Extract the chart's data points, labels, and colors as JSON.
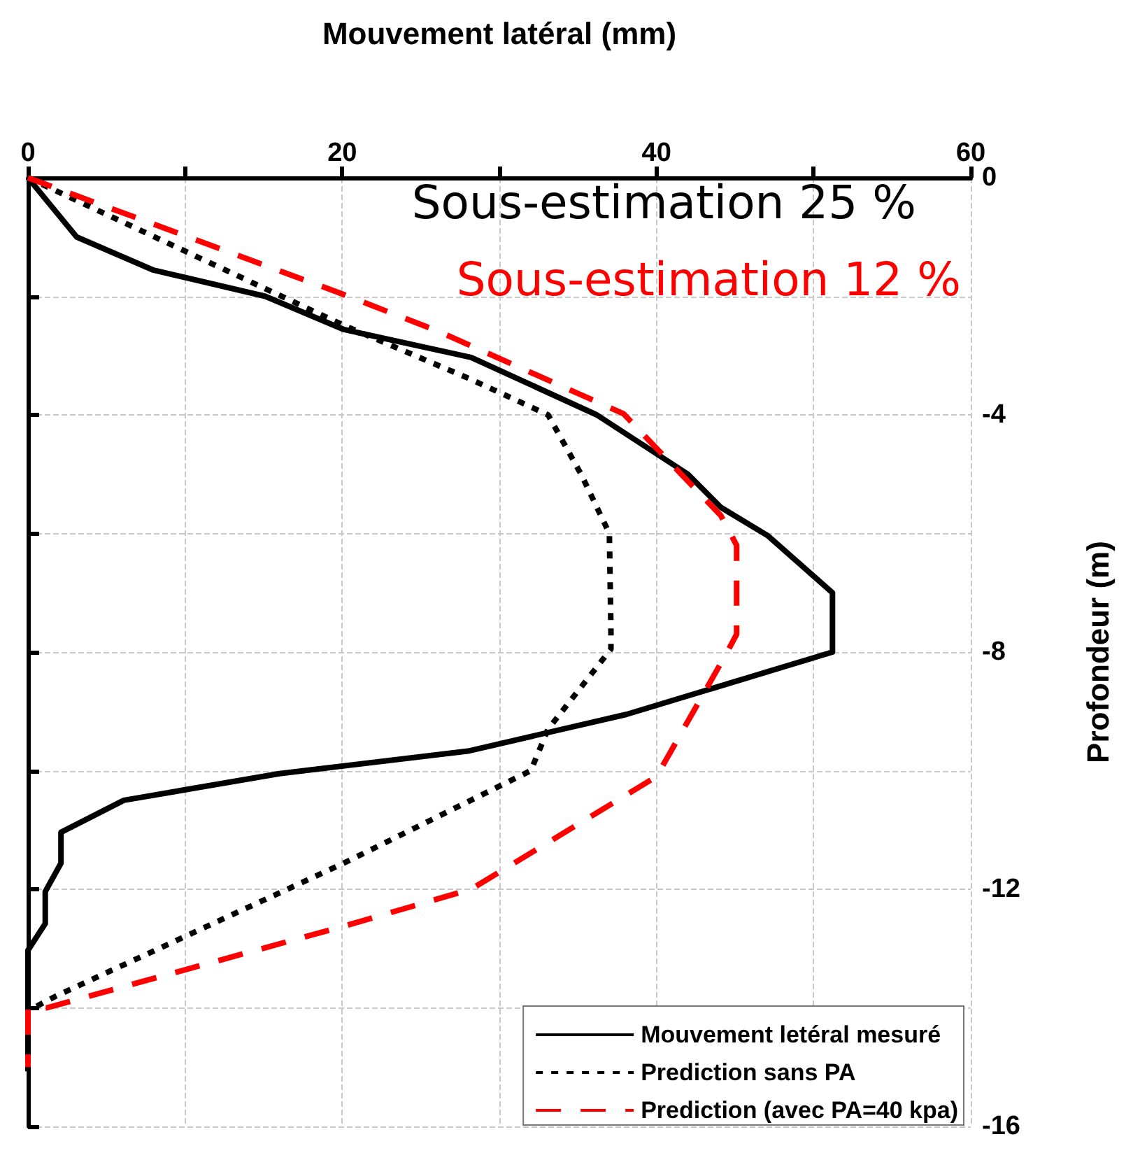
{
  "chart_data": {
    "type": "line",
    "xlabel": "Mouvement latéral (mm)",
    "ylabel": "Profondeur (m)",
    "xlim": [
      0,
      60
    ],
    "xticks": [
      0,
      {
        "value": 10,
        "label": null
      },
      20,
      {
        "value": 30,
        "label": null
      },
      40,
      {
        "value": 50,
        "label": null
      },
      60
    ],
    "ylim": [
      -16,
      0
    ],
    "yticks": [
      -16,
      {
        "value": -14,
        "label": null
      },
      -12,
      {
        "value": -10,
        "label": null
      },
      -8,
      {
        "value": -6,
        "label": null
      },
      -4,
      {
        "value": -2,
        "label": null
      },
      0
    ],
    "grid": true,
    "legend": "bottom right",
    "marker": "none",
    "annotations": [
      "Sous-estimation 25 %",
      "Sous-estimation 12 %"
    ],
    "series": [
      {
        "name": "Mouvement letéral mesuré",
        "color": "#000000",
        "line_style": "solid",
        "x": [
          0,
          3.1,
          8,
          15.1,
          20.1,
          28.2,
          36.2,
          42,
          44.1,
          47.1,
          51.2,
          51.2,
          38.1,
          28,
          16,
          6.1,
          2.1,
          2.1,
          1.1,
          1.1,
          0,
          0
        ],
        "values": [
          0,
          -1,
          -1.56,
          -2,
          -2.56,
          -3.03,
          -4,
          -5,
          -5.56,
          -6.04,
          -7,
          -8,
          -9.05,
          -9.67,
          -10.05,
          -10.5,
          -11.04,
          -11.56,
          -12.04,
          -12.58,
          -13.03,
          -15.07
        ]
      },
      {
        "name": "Prediction sans PA",
        "color": "#000000",
        "line_style": "dotted",
        "x": [
          0,
          20.1,
          28.1,
          33.1,
          35.2,
          37,
          37.1,
          37.1,
          33.1,
          32,
          20.1,
          1.8,
          0
        ],
        "values": [
          0,
          -2.49,
          -3.39,
          -4,
          -5,
          -6,
          -7.6,
          -7.95,
          -9.3,
          -10,
          -11.56,
          -13.8,
          -14.05
        ]
      },
      {
        "name": "Prediction (avec PA=40 kpa)",
        "color": "#ff0000",
        "line_style": "dashed",
        "x": [
          0,
          20.1,
          26.2,
          37.9,
          44.1,
          45.1,
          45.1,
          44.5,
          40,
          28.2,
          20.4,
          1.2,
          0,
          0
        ],
        "values": [
          0,
          -1.97,
          -2.6,
          -3.98,
          -5.7,
          -6.2,
          -7.7,
          -8,
          -10.1,
          -12,
          -12.6,
          -14,
          -14,
          -15
        ]
      }
    ]
  }
}
